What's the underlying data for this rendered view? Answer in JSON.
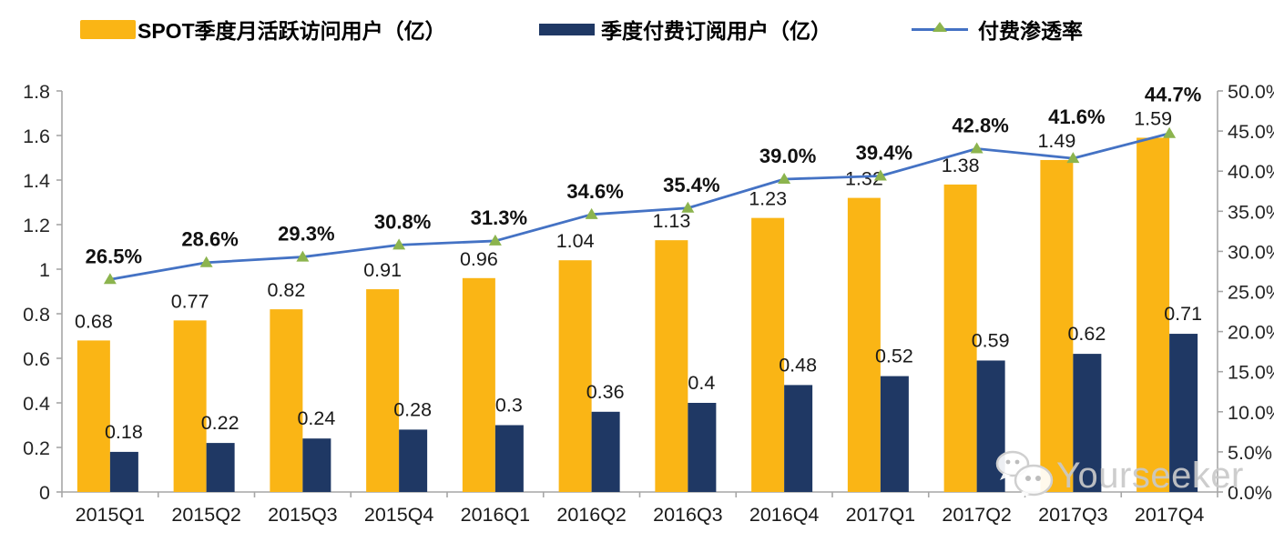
{
  "legend": {
    "items": [
      {
        "id": "mau",
        "label": "SPOT季度月活跃访问用户（亿）",
        "swatch_color": "#FAB515"
      },
      {
        "id": "subscribers",
        "label": "季度付费订阅用户（亿）",
        "swatch_color": "#1F3864"
      },
      {
        "id": "penetration",
        "label": "付费渗透率",
        "line_color": "#4472C4",
        "marker_color": "#8CB44E"
      }
    ]
  },
  "chart_data": {
    "type": "bar",
    "subtype": "grouped-bars-with-line-overlay",
    "title": "",
    "legend_position": "top",
    "grid": false,
    "axis_color": "#A6A6A6",
    "label_color": "#1A1A1A",
    "categories": [
      "2015Q1",
      "2015Q2",
      "2015Q3",
      "2015Q4",
      "2016Q1",
      "2016Q2",
      "2016Q3",
      "2016Q4",
      "2017Q1",
      "2017Q2",
      "2017Q3",
      "2017Q4"
    ],
    "series": [
      {
        "name": "SPOT季度月活跃访问用户（亿）",
        "type": "bar",
        "axis": "left",
        "color": "#FAB515",
        "values": [
          0.68,
          0.77,
          0.82,
          0.91,
          0.96,
          1.04,
          1.13,
          1.23,
          1.32,
          1.38,
          1.49,
          1.59
        ],
        "labels": [
          "0.68",
          "0.77",
          "0.82",
          "0.91",
          "0.96",
          "1.04",
          "1.13",
          "1.23",
          "1.32",
          "1.38",
          "1.49",
          "1.59"
        ]
      },
      {
        "name": "季度付费订阅用户（亿）",
        "type": "bar",
        "axis": "left",
        "color": "#1F3864",
        "values": [
          0.18,
          0.22,
          0.24,
          0.28,
          0.3,
          0.36,
          0.4,
          0.48,
          0.52,
          0.59,
          0.62,
          0.71
        ],
        "labels": [
          "0.18",
          "0.22",
          "0.24",
          "0.28",
          "0.3",
          "0.36",
          "0.4",
          "0.48",
          "0.52",
          "0.59",
          "0.62",
          "0.71"
        ]
      },
      {
        "name": "付费渗透率",
        "type": "line",
        "axis": "right",
        "color": "#4472C4",
        "marker": "triangle",
        "marker_color": "#8CB44E",
        "values": [
          26.5,
          28.6,
          29.3,
          30.8,
          31.3,
          34.6,
          35.4,
          39.0,
          39.4,
          42.8,
          41.6,
          44.7
        ],
        "labels": [
          "26.5%",
          "28.6%",
          "29.3%",
          "30.8%",
          "31.3%",
          "34.6%",
          "35.4%",
          "39.0%",
          "39.4%",
          "42.8%",
          "41.6%",
          "44.7%"
        ]
      }
    ],
    "left_axis": {
      "min": 0,
      "max": 1.8,
      "step": 0.2,
      "tick_labels_top_to_bottom": [
        "1.8",
        "1.6",
        "1.4",
        "1.2",
        "1",
        "0.8",
        "0.6",
        "0.4",
        "0.2",
        "0"
      ]
    },
    "right_axis": {
      "min": 0,
      "max": 50,
      "step": 5,
      "tick_labels_top_to_bottom": [
        "50.0%",
        "45.0%",
        "40.0%",
        "35.0%",
        "30.0%",
        "25.0%",
        "20.0%",
        "15.0%",
        "10.0%",
        "5.0%",
        "0.0%"
      ]
    }
  },
  "watermark": {
    "text": "Yourseeker",
    "icon": "wechat-chat-bubbles-icon"
  }
}
